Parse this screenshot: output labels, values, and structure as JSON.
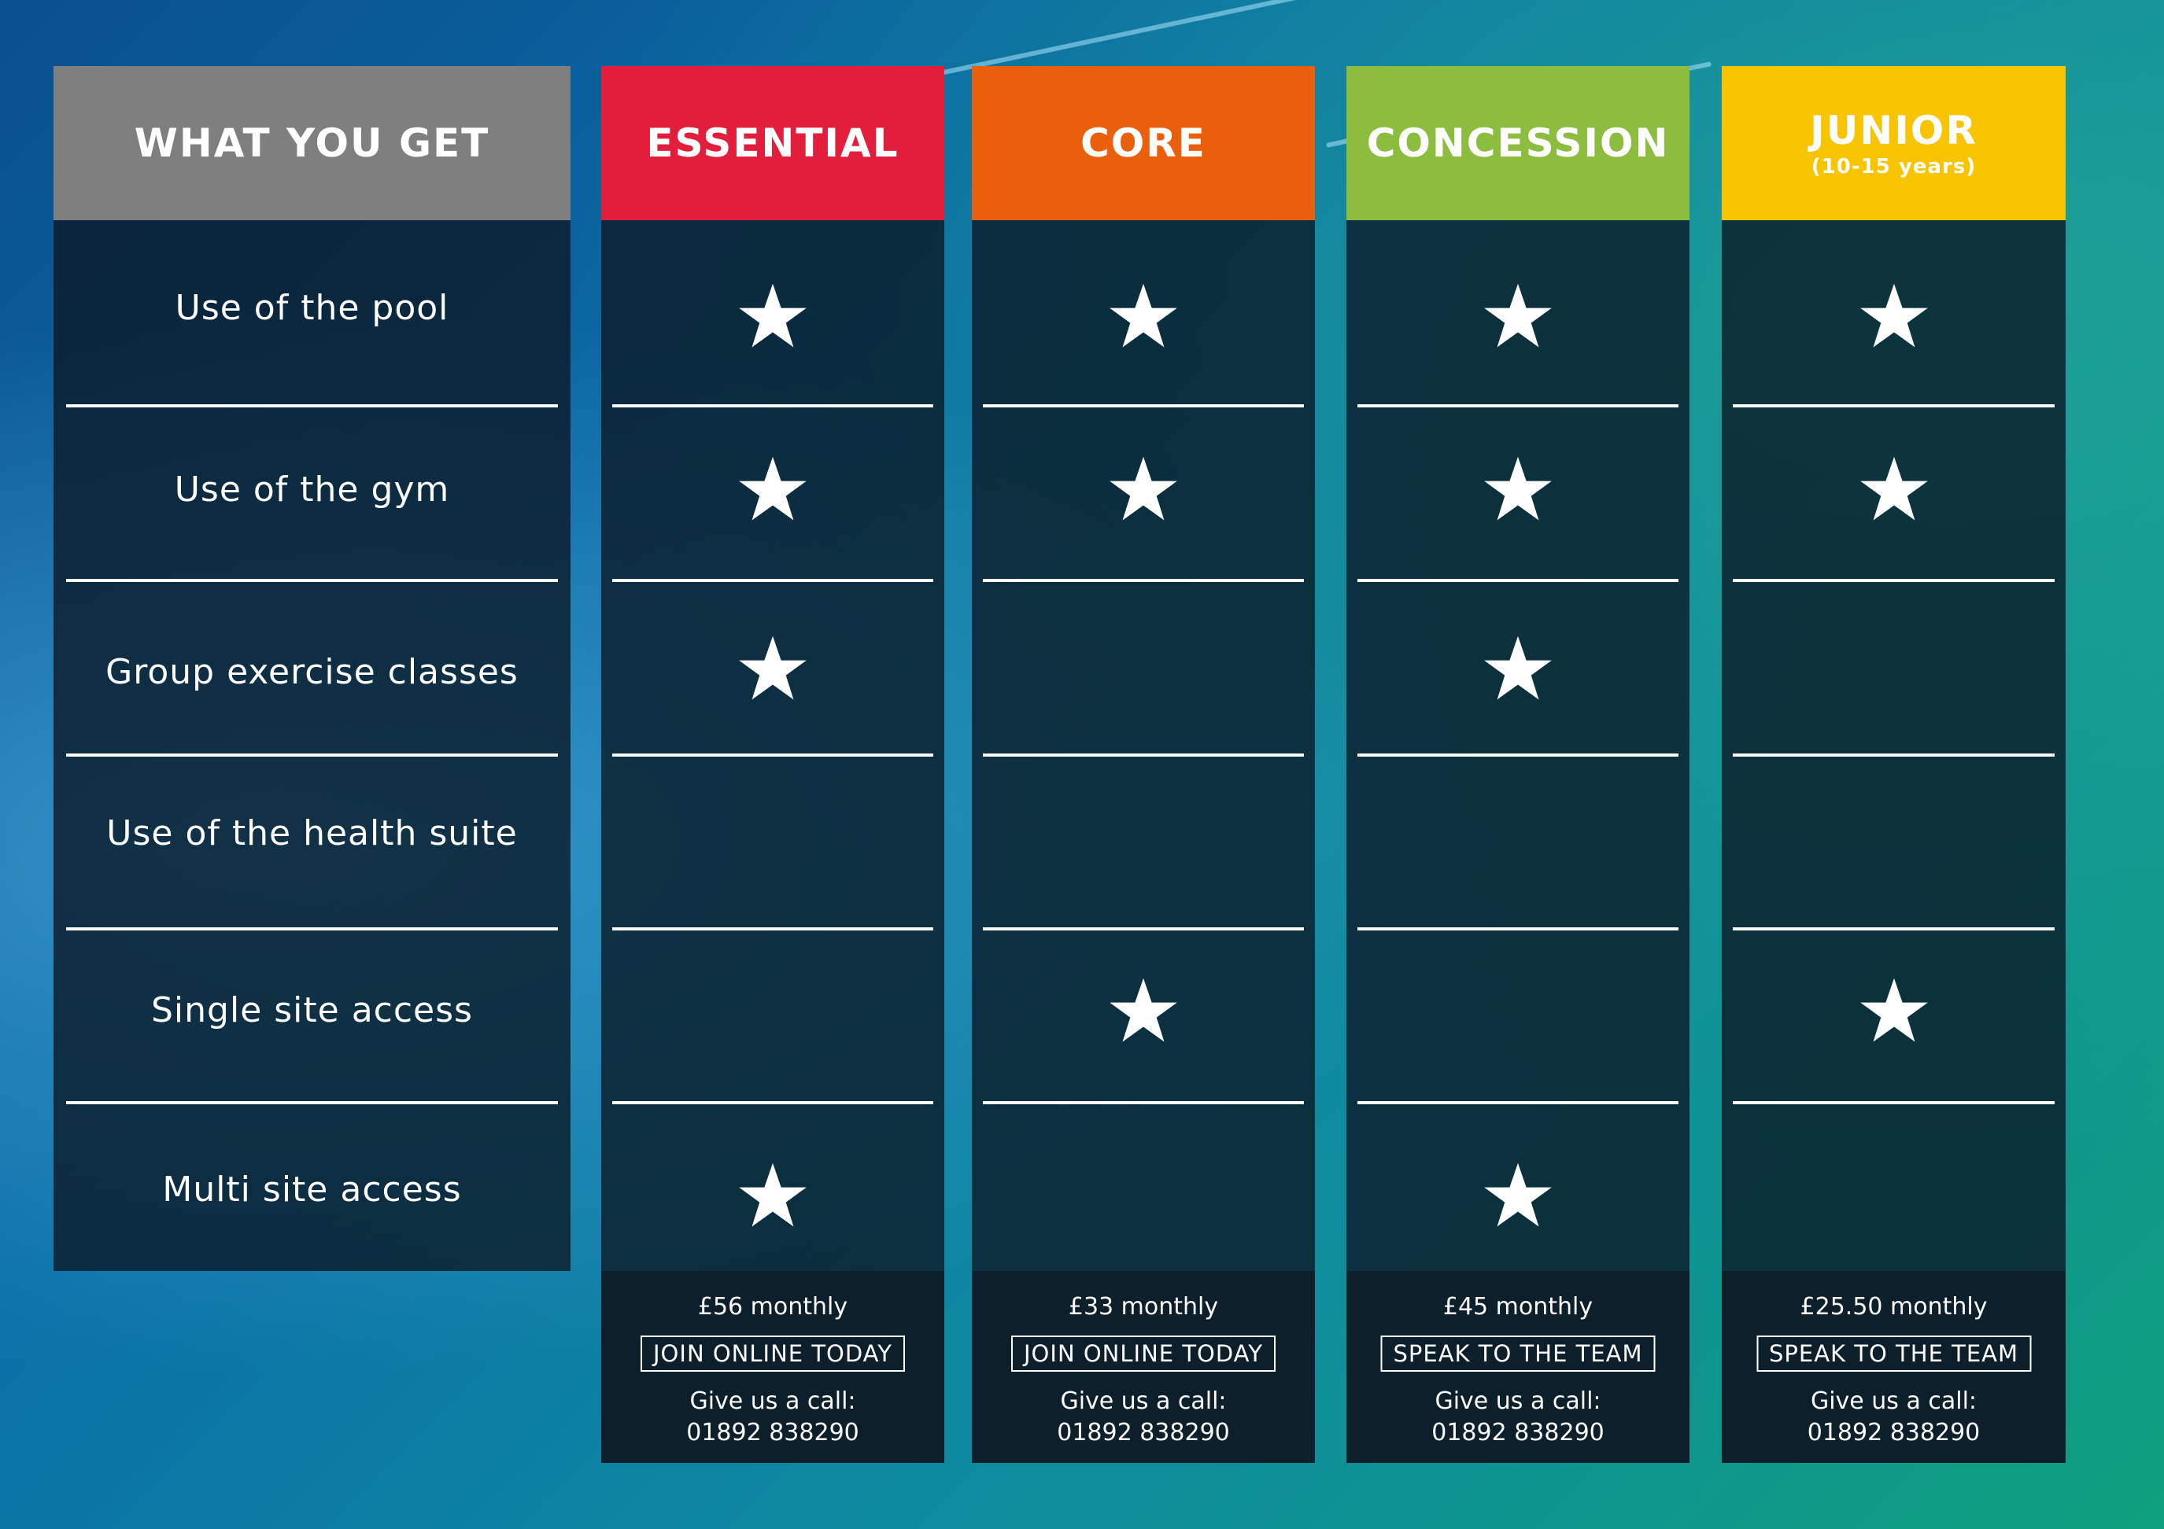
{
  "colors": {
    "header_gray": "#7f7f7f",
    "essential": "#e31e3c",
    "core": "#ea5f0b",
    "concession": "#8cbd3f",
    "junior": "#f8c400"
  },
  "features": {
    "title": "WHAT YOU GET",
    "items": [
      "Use of the pool",
      "Use of the gym",
      "Group exercise classes",
      "Use of the health suite",
      "Single site access",
      "Multi site access"
    ]
  },
  "plans": [
    {
      "name": "ESSENTIAL",
      "subtitle": "",
      "price": "£56 monthly",
      "cta": "JOIN ONLINE TODAY",
      "call_label": "Give us a call:",
      "phone": "01892 838290",
      "included": [
        true,
        true,
        true,
        false,
        false,
        true
      ]
    },
    {
      "name": "CORE",
      "subtitle": "",
      "price": "£33 monthly",
      "cta": "JOIN ONLINE TODAY",
      "call_label": "Give us a call:",
      "phone": "01892 838290",
      "included": [
        true,
        true,
        false,
        false,
        true,
        false
      ]
    },
    {
      "name": "CONCESSION",
      "subtitle": "",
      "price": "£45 monthly",
      "cta": "SPEAK TO THE TEAM",
      "call_label": "Give us a call:",
      "phone": "01892 838290",
      "included": [
        true,
        true,
        true,
        false,
        false,
        true
      ]
    },
    {
      "name": "JUNIOR",
      "subtitle": "(10-15 years)",
      "price": "£25.50 monthly",
      "cta": "SPEAK TO THE TEAM",
      "call_label": "Give us a call:",
      "phone": "01892 838290",
      "included": [
        true,
        true,
        false,
        false,
        true,
        false
      ]
    }
  ]
}
